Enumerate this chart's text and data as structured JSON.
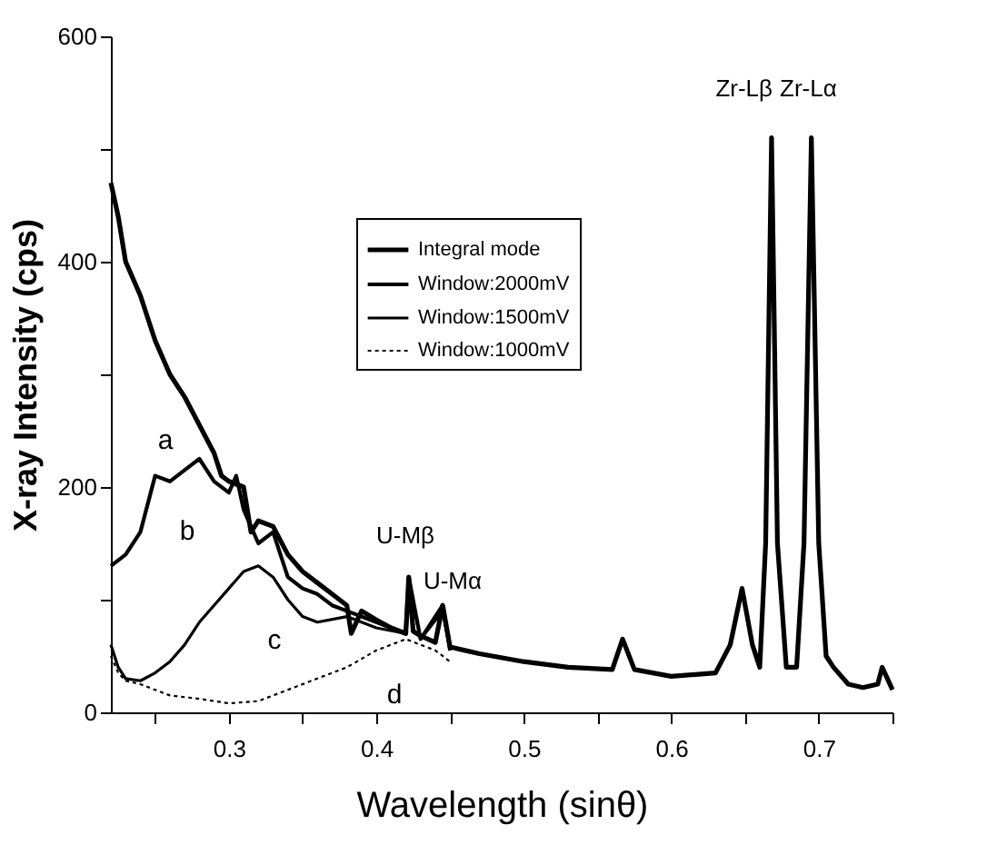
{
  "chart_data": {
    "type": "line",
    "xlabel": "Wavelength (sinθ)",
    "ylabel": "X-ray Intensity (cps)",
    "xlim": [
      0.22,
      0.75
    ],
    "ylim": [
      0,
      600
    ],
    "xticks": [
      {
        "value": 0.25,
        "label": null
      },
      0.3,
      {
        "value": 0.35,
        "label": null
      },
      0.4,
      {
        "value": 0.45,
        "label": null
      },
      0.5,
      {
        "value": 0.55,
        "label": null
      },
      0.6,
      {
        "value": 0.65,
        "label": null
      },
      0.7,
      {
        "value": 0.75,
        "label": null
      }
    ],
    "yticks": [
      0,
      {
        "value": 100,
        "label": null
      },
      200,
      {
        "value": 300,
        "label": null
      },
      400,
      {
        "value": 500,
        "label": null
      },
      600
    ],
    "grid": false,
    "legend": "top",
    "marker": "none",
    "series": [
      {
        "name": "Integral mode",
        "color": "#000000",
        "line_style": "solid",
        "x": [
          0.22,
          0.225,
          0.23,
          0.24,
          0.25,
          0.26,
          0.27,
          0.28,
          0.29,
          0.295,
          0.3,
          0.31,
          0.315,
          0.32,
          0.33,
          0.34,
          0.35,
          0.36,
          0.37,
          0.38,
          0.383,
          0.39,
          0.4,
          0.41,
          0.42,
          0.422,
          0.425,
          0.43,
          0.44,
          0.445,
          0.45,
          0.47,
          0.5,
          0.53,
          0.56,
          0.567,
          0.575,
          0.6,
          0.63,
          0.64,
          0.648,
          0.655,
          0.66,
          0.664,
          0.668,
          0.672,
          0.678,
          0.685,
          0.69,
          0.695,
          0.7,
          0.705,
          0.71,
          0.72,
          0.73,
          0.74,
          0.743,
          0.75
        ],
        "values": [
          470,
          440,
          400,
          370,
          330,
          300,
          280,
          255,
          230,
          210,
          205,
          200,
          160,
          170,
          165,
          140,
          125,
          115,
          105,
          95,
          70,
          90,
          82,
          75,
          70,
          120,
          72,
          68,
          62,
          95,
          58,
          52,
          45,
          40,
          38,
          65,
          38,
          32,
          35,
          60,
          110,
          60,
          40,
          150,
          510,
          150,
          40,
          40,
          150,
          510,
          150,
          50,
          40,
          25,
          22,
          25,
          40,
          20
        ]
      },
      {
        "name": "Window:2000mV",
        "color": "#000000",
        "line_style": "solid",
        "x": [
          0.22,
          0.23,
          0.24,
          0.25,
          0.26,
          0.27,
          0.28,
          0.29,
          0.3,
          0.305,
          0.31,
          0.32,
          0.33,
          0.34,
          0.35,
          0.36,
          0.37,
          0.38,
          0.4,
          0.42,
          0.422,
          0.43,
          0.445,
          0.45
        ],
        "values": [
          130,
          140,
          160,
          210,
          205,
          215,
          225,
          205,
          195,
          210,
          180,
          150,
          160,
          120,
          110,
          105,
          95,
          90,
          80,
          70,
          120,
          65,
          95,
          55
        ]
      },
      {
        "name": "Window:1500mV",
        "color": "#000000",
        "line_style": "solid",
        "x": [
          0.22,
          0.225,
          0.23,
          0.24,
          0.25,
          0.26,
          0.27,
          0.28,
          0.29,
          0.3,
          0.31,
          0.32,
          0.33,
          0.34,
          0.35,
          0.36,
          0.38,
          0.4,
          0.42,
          0.422,
          0.43,
          0.445,
          0.45
        ],
        "values": [
          60,
          40,
          30,
          28,
          35,
          45,
          60,
          80,
          95,
          110,
          125,
          130,
          120,
          100,
          85,
          80,
          85,
          75,
          70,
          115,
          65,
          90,
          55
        ]
      },
      {
        "name": "Window:1000mV",
        "color": "#000000",
        "line_style": "dotted",
        "x": [
          0.22,
          0.225,
          0.23,
          0.24,
          0.25,
          0.26,
          0.28,
          0.3,
          0.32,
          0.34,
          0.36,
          0.38,
          0.4,
          0.42,
          0.44,
          0.45
        ],
        "values": [
          50,
          35,
          28,
          25,
          20,
          15,
          12,
          8,
          10,
          20,
          30,
          40,
          55,
          65,
          55,
          45
        ]
      }
    ],
    "annotations": [
      "a",
      "b",
      "c",
      "d",
      "U-Mβ",
      "U-Mα",
      "Zr-Lβ",
      "Zr-Lα"
    ]
  }
}
